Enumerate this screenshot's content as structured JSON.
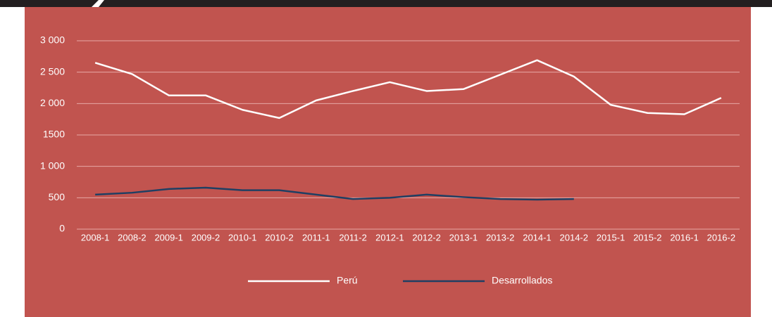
{
  "chart_data": {
    "type": "line",
    "categories": [
      "2008-1",
      "2008-2",
      "2009-1",
      "2009-2",
      "2010-1",
      "2010-2",
      "2011-1",
      "2011-2",
      "2012-1",
      "2012-2",
      "2013-1",
      "2013-2",
      "2014-1",
      "2014-2",
      "2015-1",
      "2015-2",
      "2016-1",
      "2016-2"
    ],
    "series": [
      {
        "name": "Perú",
        "color": "#ffffff",
        "values": [
          2650,
          2470,
          2130,
          2130,
          1900,
          1770,
          2050,
          2200,
          2340,
          2200,
          2230,
          2460,
          2690,
          2430,
          1980,
          1850,
          1830,
          2090
        ]
      },
      {
        "name": "Desarrollados",
        "color": "#1f3f63",
        "values": [
          550,
          580,
          640,
          660,
          620,
          620,
          550,
          480,
          500,
          550,
          510,
          480,
          470,
          480,
          null,
          null,
          null,
          null
        ]
      }
    ],
    "ylim": [
      0,
      3000
    ],
    "yticks": [
      0,
      500,
      {
        "value": 1000,
        "label": "1 000"
      },
      1500,
      {
        "value": 2000,
        "label": "2 000"
      },
      {
        "value": 2500,
        "label": "2 500"
      },
      {
        "value": 3000,
        "label": "3 000"
      }
    ],
    "grid": true,
    "legend": "bottom"
  }
}
